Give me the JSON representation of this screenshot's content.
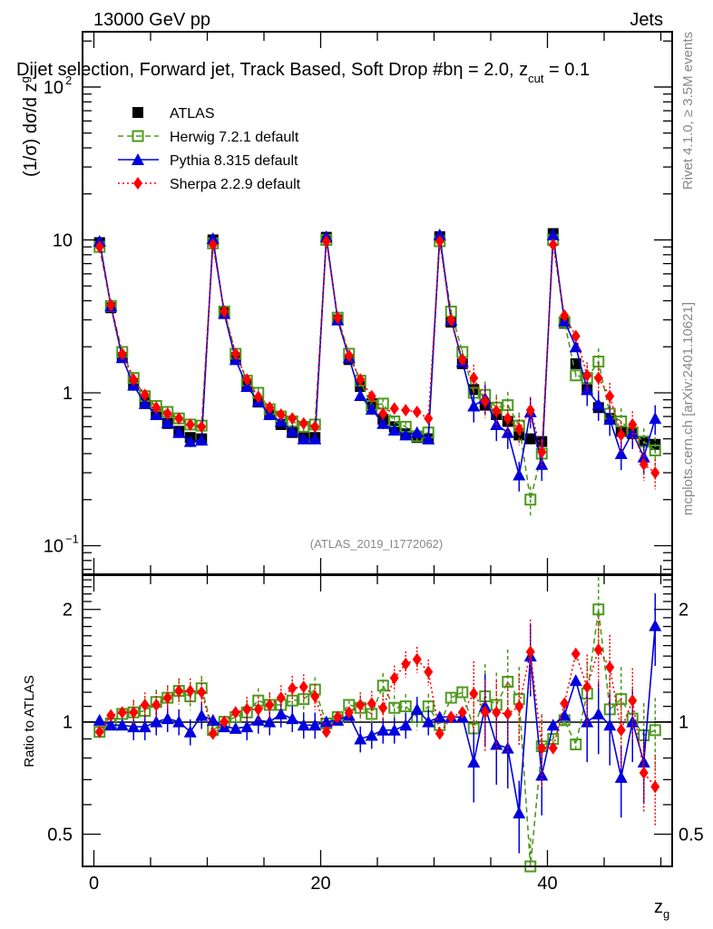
{
  "header": {
    "left": "13000 GeV pp",
    "right": "Jets"
  },
  "side_labels": {
    "rivet": "Rivet 4.1.0, ≥ 3.5M events",
    "mcplots": "mcplots.cern.ch [arXiv:2401.10621]"
  },
  "chart_data": [
    {
      "type": "scatter",
      "panel": "main",
      "title": "Dijet selection, Forward jet, Track Based, Soft Drop #b = 2.0, z_cut = 0.1",
      "title_display": "Dijet selection, Forward jet, Track Based, Soft Drop #bη = 2.0, z",
      "title_sub": "cut",
      "title_tail": " = 0.1",
      "ylabel": "(1/σ) dσ/d z",
      "ylabel_sub": "g",
      "xlabel": "z",
      "xlabel_sub": "g",
      "yscale": "log",
      "ylim": [
        0.065,
        230
      ],
      "xlim": [
        -1,
        51
      ],
      "ytick_labels": [
        {
          "value": 0.1,
          "base": "10",
          "exp": "−1"
        },
        {
          "value": 1,
          "base": "1",
          "exp": ""
        },
        {
          "value": 10,
          "base": "10",
          "exp": ""
        },
        {
          "value": 100,
          "base": "10",
          "exp": "2"
        }
      ],
      "watermark": "(ATLAS_2019_I1772062)",
      "legend": [
        {
          "name": "ATLAS",
          "marker": "square-filled",
          "color": "#000000",
          "line": "none"
        },
        {
          "name": "Herwig 7.2.1 default",
          "marker": "square-open",
          "color": "#4d9a1f",
          "line": "dashed"
        },
        {
          "name": "Pythia 8.315 default",
          "marker": "triangle",
          "color": "#0000dd",
          "line": "solid"
        },
        {
          "name": "Sherpa 2.2.9 default",
          "marker": "diamond",
          "color": "#ff0000",
          "line": "dotted"
        }
      ],
      "legend_position": "top-left",
      "x": [
        0.5,
        1.5,
        2.5,
        3.5,
        4.5,
        5.5,
        6.5,
        7.5,
        8.5,
        9.5,
        10.5,
        11.5,
        12.5,
        13.5,
        14.5,
        15.5,
        16.5,
        17.5,
        18.5,
        19.5,
        20.5,
        21.5,
        22.5,
        23.5,
        24.5,
        25.5,
        26.5,
        27.5,
        28.5,
        29.5,
        30.5,
        31.5,
        32.5,
        33.5,
        34.5,
        35.5,
        36.5,
        37.5,
        38.5,
        39.5,
        40.5,
        41.5,
        42.5,
        43.5,
        44.5,
        45.5,
        46.5,
        47.5,
        48.5,
        49.5
      ],
      "series": [
        {
          "name": "ATLAS",
          "values": [
            9.6,
            3.6,
            1.7,
            1.15,
            0.87,
            0.72,
            0.63,
            0.56,
            0.51,
            0.5,
            10.0,
            3.4,
            1.7,
            1.13,
            0.87,
            0.72,
            0.62,
            0.55,
            0.51,
            0.51,
            10.4,
            3.0,
            1.65,
            1.1,
            0.85,
            0.67,
            0.6,
            0.54,
            0.51,
            0.5,
            10.5,
            2.9,
            1.55,
            1.05,
            0.83,
            0.72,
            0.65,
            0.53,
            0.5,
            0.48,
            11.0,
            2.85,
            1.55,
            1.05,
            0.8,
            0.68,
            0.56,
            0.54,
            0.48,
            0.46
          ]
        },
        {
          "name": "Herwig 7.2.1 default",
          "values": [
            9.0,
            3.7,
            1.85,
            1.25,
            0.95,
            0.82,
            0.75,
            0.68,
            0.62,
            0.61,
            9.5,
            3.4,
            1.8,
            1.2,
            1.0,
            0.78,
            0.7,
            0.65,
            0.6,
            0.62,
            10.0,
            3.1,
            1.8,
            1.2,
            0.82,
            0.85,
            0.65,
            0.6,
            0.52,
            0.55,
            9.8,
            3.4,
            1.85,
            1.0,
            0.97,
            0.8,
            0.83,
            0.61,
            0.2,
            0.4,
            10.0,
            2.9,
            1.3,
            1.25,
            1.6,
            0.73,
            0.65,
            0.55,
            0.48,
            0.42
          ]
        },
        {
          "name": "Pythia 8.315 default",
          "values": [
            9.8,
            3.7,
            1.7,
            1.12,
            0.85,
            0.72,
            0.64,
            0.55,
            0.48,
            0.49,
            10.2,
            3.3,
            1.65,
            1.1,
            0.88,
            0.72,
            0.65,
            0.56,
            0.5,
            0.5,
            10.5,
            3.0,
            1.7,
            0.96,
            0.78,
            0.63,
            0.57,
            0.53,
            0.55,
            0.5,
            10.8,
            3.0,
            1.6,
            0.82,
            0.92,
            0.62,
            0.55,
            0.29,
            0.75,
            0.34,
            10.8,
            2.95,
            2.0,
            1.05,
            0.84,
            0.67,
            0.4,
            0.55,
            0.38,
            0.68
          ]
        },
        {
          "name": "Sherpa 2.2.9 default",
          "values": [
            9.0,
            3.75,
            1.8,
            1.22,
            0.97,
            0.8,
            0.73,
            0.68,
            0.62,
            0.6,
            9.3,
            3.4,
            1.8,
            1.22,
            0.94,
            0.8,
            0.72,
            0.68,
            0.63,
            0.6,
            9.8,
            3.1,
            1.75,
            1.22,
            0.95,
            0.73,
            0.79,
            0.77,
            0.75,
            0.68,
            9.8,
            3.0,
            1.65,
            1.25,
            0.88,
            0.76,
            0.68,
            0.58,
            0.77,
            0.41,
            9.3,
            3.2,
            2.35,
            1.3,
            1.25,
            0.95,
            0.53,
            0.62,
            0.34,
            0.3
          ]
        }
      ]
    },
    {
      "type": "scatter",
      "panel": "ratio",
      "ylabel": "Ratio to ATLAS",
      "xlabel": "z",
      "xlabel_sub": "g",
      "yscale": "log",
      "ylim": [
        0.41,
        2.47
      ],
      "xlim": [
        -1,
        51
      ],
      "yticks": [
        0.5,
        1,
        2
      ],
      "ytick_labels": [
        "0.5",
        "1",
        "2"
      ],
      "xticks": [
        0,
        20,
        40
      ],
      "xtick_labels": [
        "0",
        "20",
        "40"
      ],
      "reference_line": 1,
      "x": [
        0.5,
        1.5,
        2.5,
        3.5,
        4.5,
        5.5,
        6.5,
        7.5,
        8.5,
        9.5,
        10.5,
        11.5,
        12.5,
        13.5,
        14.5,
        15.5,
        16.5,
        17.5,
        18.5,
        19.5,
        20.5,
        21.5,
        22.5,
        23.5,
        24.5,
        25.5,
        26.5,
        27.5,
        28.5,
        29.5,
        30.5,
        31.5,
        32.5,
        33.5,
        34.5,
        35.5,
        36.5,
        37.5,
        38.5,
        39.5,
        40.5,
        41.5,
        42.5,
        43.5,
        44.5,
        45.5,
        46.5,
        47.5,
        48.5,
        49.5
      ],
      "series": [
        {
          "name": "Herwig 7.2.1 default",
          "values": [
            0.94,
            0.99,
            1.05,
            1.06,
            1.07,
            1.13,
            1.16,
            1.21,
            1.17,
            1.23,
            0.95,
            1.0,
            1.03,
            1.06,
            1.14,
            1.11,
            1.11,
            1.14,
            1.15,
            1.22,
            0.99,
            1.03,
            1.11,
            1.09,
            1.05,
            1.25,
            1.09,
            1.1,
            1.03,
            1.1,
            0.98,
            1.16,
            1.2,
            0.96,
            1.17,
            1.11,
            1.28,
            1.15,
            0.4,
            0.86,
            0.9,
            1.01,
            0.87,
            1.19,
            2.0,
            1.08,
            1.15,
            1.02,
            0.92,
            0.95
          ]
        },
        {
          "name": "Pythia 8.315 default",
          "values": [
            1.01,
            0.98,
            0.98,
            0.97,
            0.97,
            1.0,
            1.02,
            1.0,
            0.94,
            1.04,
            1.01,
            0.97,
            0.96,
            0.97,
            1.01,
            1.0,
            1.05,
            1.02,
            0.98,
            0.98,
            1.0,
            1.01,
            1.04,
            0.9,
            0.92,
            0.95,
            0.95,
            0.98,
            1.08,
            1.0,
            1.03,
            1.03,
            1.03,
            0.78,
            1.1,
            0.87,
            0.85,
            0.57,
            1.5,
            0.72,
            0.98,
            1.04,
            1.29,
            1.0,
            1.05,
            0.98,
            0.71,
            1.0,
            0.78,
            1.81
          ]
        },
        {
          "name": "Sherpa 2.2.9 default",
          "values": [
            0.94,
            1.04,
            1.06,
            1.06,
            1.11,
            1.11,
            1.16,
            1.21,
            1.21,
            1.2,
            0.93,
            1.0,
            1.06,
            1.08,
            1.08,
            1.11,
            1.16,
            1.23,
            1.24,
            1.17,
            0.94,
            1.03,
            1.06,
            1.11,
            1.12,
            1.09,
            1.31,
            1.43,
            1.47,
            1.36,
            0.93,
            1.03,
            1.06,
            1.19,
            1.06,
            1.06,
            1.05,
            1.1,
            1.54,
            0.85,
            0.85,
            1.12,
            1.52,
            1.24,
            1.56,
            1.4,
            0.95,
            1.14,
            0.73,
            0.67
          ]
        }
      ]
    }
  ]
}
